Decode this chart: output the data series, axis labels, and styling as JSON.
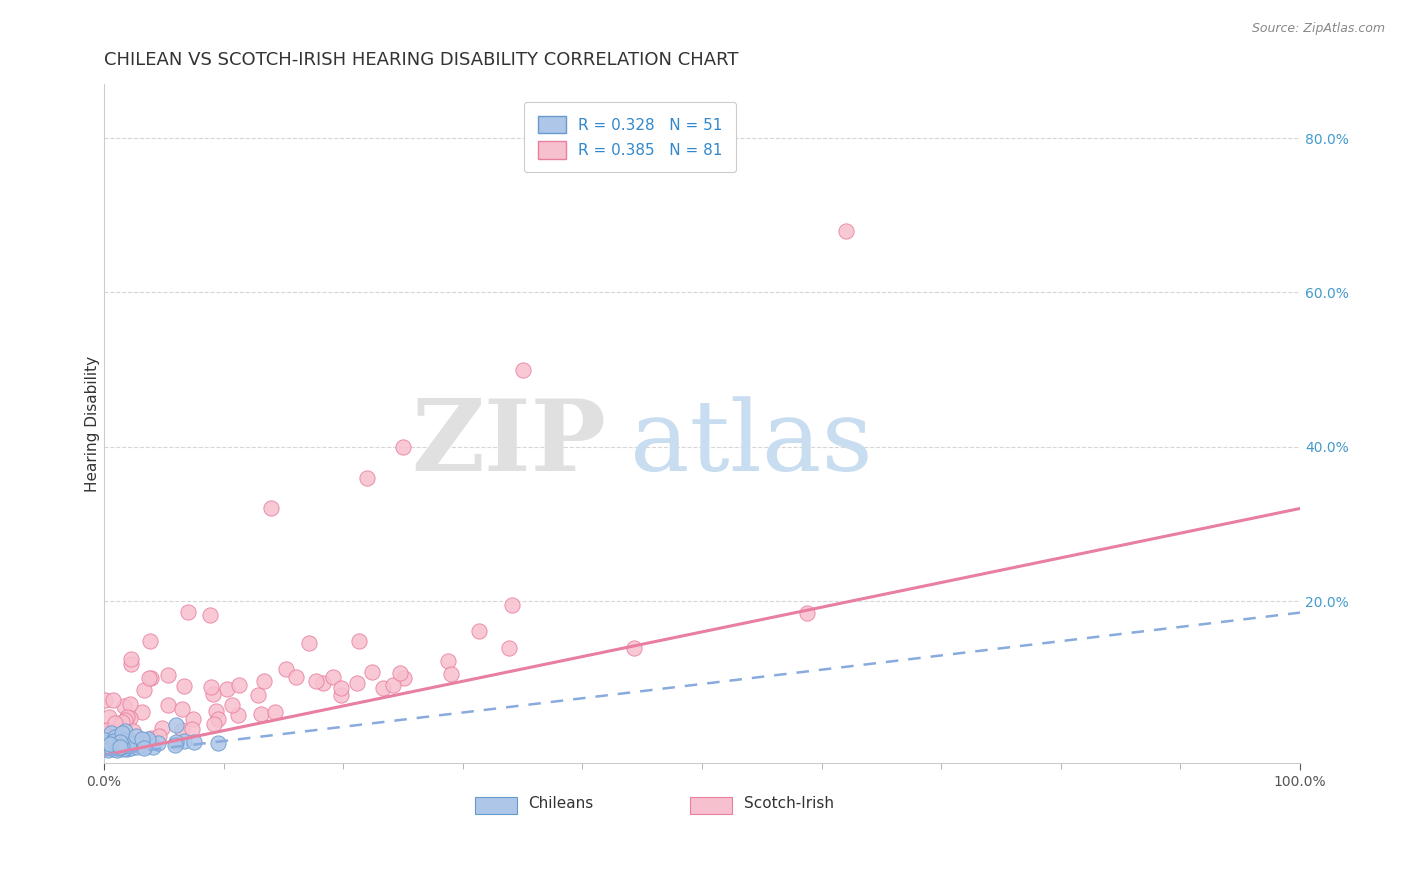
{
  "title": "CHILEAN VS SCOTCH-IRISH HEARING DISABILITY CORRELATION CHART",
  "source": "Source: ZipAtlas.com",
  "ylabel": "Hearing Disability",
  "right_yticks": [
    0.0,
    0.2,
    0.4,
    0.6,
    0.8
  ],
  "right_yticklabels": [
    "",
    "20.0%",
    "40.0%",
    "60.0%",
    "80.0%"
  ],
  "xlim": [
    0.0,
    1.0
  ],
  "ylim": [
    -0.01,
    0.87
  ],
  "chilean_R": 0.328,
  "chilean_N": 51,
  "scotch_irish_R": 0.385,
  "scotch_irish_N": 81,
  "chilean_color": "#aec6e8",
  "scotch_irish_color": "#f7c0ce",
  "chilean_edge_color": "#6699cc",
  "scotch_irish_edge_color": "#e87fa0",
  "chilean_line_color": "#88aadd",
  "scotch_irish_line_color": "#e87fa0",
  "legend_label_chileans": "Chileans",
  "legend_label_scotch": "Scotch-Irish",
  "watermark_zip": "ZIP",
  "watermark_atlas": "atlas",
  "title_fontsize": 13,
  "axis_label_fontsize": 11,
  "tick_fontsize": 10,
  "legend_fontsize": 11,
  "background_color": "#ffffff",
  "grid_color": "#cccccc",
  "scotch_trend_x0": 0.0,
  "scotch_trend_y0": 0.0,
  "scotch_trend_x1": 1.0,
  "scotch_trend_y1": 0.32,
  "chile_trend_x0": 0.0,
  "chile_trend_y0": 0.0,
  "chile_trend_x1": 1.0,
  "chile_trend_y1": 0.185
}
